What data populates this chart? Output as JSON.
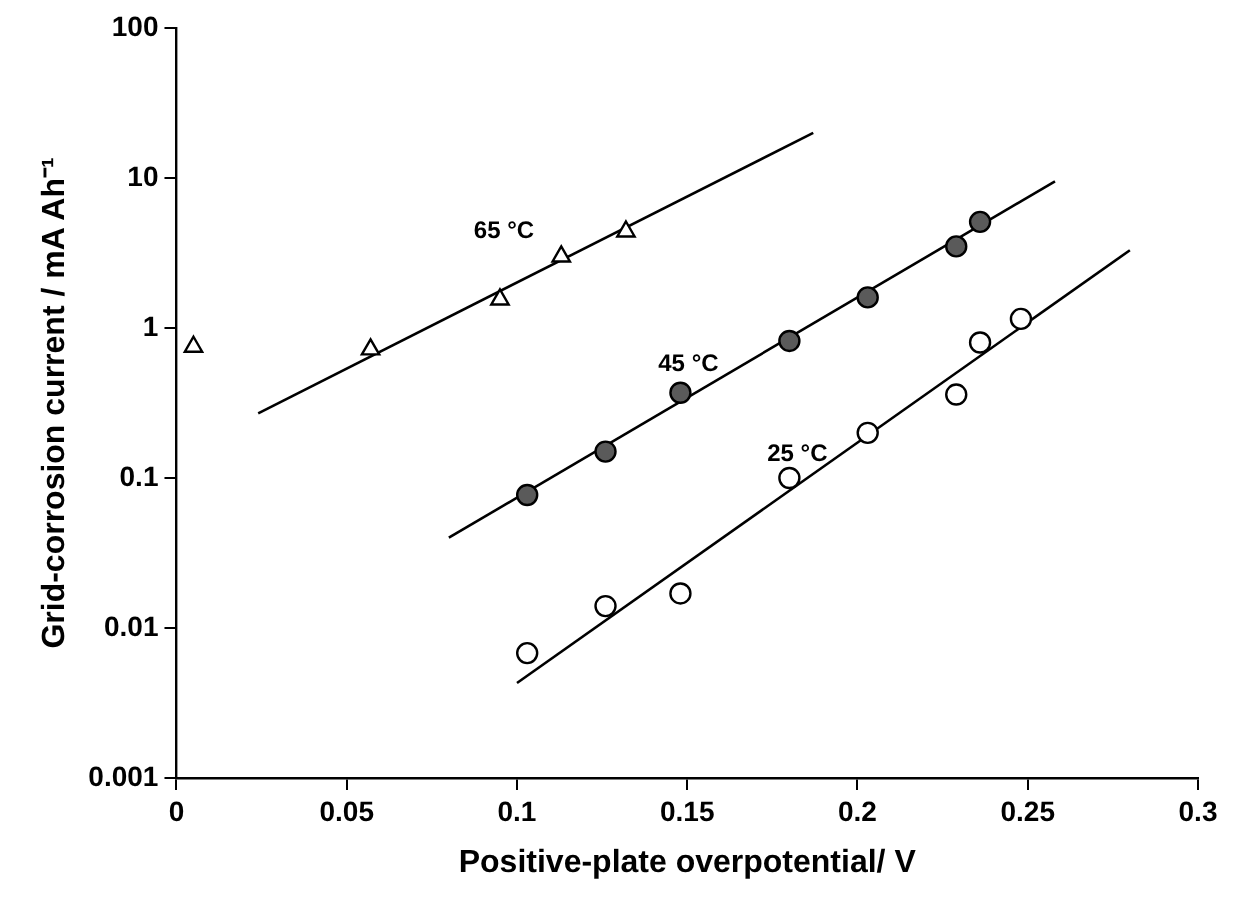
{
  "chart_data": {
    "type": "scatter",
    "xlabel": "Positive-plate overpotential/ V",
    "ylabel": "Grid-corrosion current / mA Ah⁻¹",
    "xlim": [
      0,
      0.3
    ],
    "xticks": [
      0,
      0.05,
      0.1,
      0.15,
      0.2,
      0.25,
      0.3
    ],
    "ylim": [
      0.001,
      100
    ],
    "yticks": [
      0.001,
      0.01,
      0.1,
      1,
      10,
      100
    ],
    "log": "y",
    "grid": false,
    "legend": false,
    "series": [
      {
        "name": "65 °C",
        "marker": "triangle",
        "color": "#ffffff",
        "x": [
          0.005,
          0.057,
          0.095,
          0.113,
          0.132
        ],
        "values": [
          0.75,
          0.72,
          1.55,
          3.0,
          4.4
        ]
      },
      {
        "name": "45 °C",
        "marker": "circle",
        "color": "#5a5a5a",
        "x": [
          0.103,
          0.126,
          0.148,
          0.18,
          0.203,
          0.229,
          0.236
        ],
        "values": [
          0.077,
          0.15,
          0.37,
          0.82,
          1.6,
          3.5,
          5.1
        ]
      },
      {
        "name": "25 °C",
        "marker": "circle",
        "color": "#ffffff",
        "x": [
          0.103,
          0.126,
          0.148,
          0.18,
          0.203,
          0.229,
          0.236,
          0.248
        ],
        "values": [
          0.0068,
          0.014,
          0.017,
          0.1,
          0.2,
          0.36,
          0.8,
          1.15
        ]
      },
      {
        "type": "line",
        "marker": "none",
        "color": "#000000",
        "x": [
          0.024,
          0.187
        ],
        "values": [
          0.27,
          20
        ]
      },
      {
        "type": "line",
        "marker": "none",
        "color": "#000000",
        "x": [
          0.08,
          0.258
        ],
        "values": [
          0.04,
          9.5
        ]
      },
      {
        "type": "line",
        "marker": "none",
        "color": "#000000",
        "x": [
          0.1,
          0.28
        ],
        "values": [
          0.0043,
          3.3
        ]
      }
    ]
  }
}
